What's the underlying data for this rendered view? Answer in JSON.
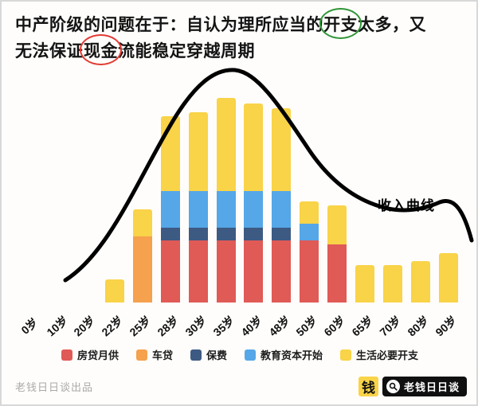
{
  "title": {
    "part1": "中产阶级的问题在于：自认为理所应当的",
    "circled_green": "开支",
    "part2": "太多，又",
    "part3": "无法保证",
    "circled_red": "现金",
    "part4": "流能稳定穿越周期"
  },
  "chart_data": {
    "type": "bar",
    "stacked": true,
    "grid": false,
    "legend_position": "bottom",
    "ylim": [
      0,
      100
    ],
    "categories": [
      "0岁",
      "10岁",
      "20岁",
      "22岁",
      "25岁",
      "28岁",
      "30岁",
      "35岁",
      "40岁",
      "48岁",
      "50岁",
      "60岁",
      "65岁",
      "70岁",
      "80岁",
      "90岁"
    ],
    "series": [
      {
        "name": "房贷月供",
        "color": "#e05a56",
        "values": [
          0,
          0,
          0,
          0,
          0,
          30,
          30,
          30,
          30,
          30,
          30,
          28,
          0,
          0,
          0,
          0
        ]
      },
      {
        "name": "车贷",
        "color": "#f5a14d",
        "values": [
          0,
          0,
          0,
          0,
          32,
          0,
          0,
          0,
          0,
          0,
          0,
          0,
          0,
          0,
          0,
          0
        ]
      },
      {
        "name": "保费",
        "color": "#3d5a83",
        "values": [
          0,
          0,
          0,
          0,
          0,
          6,
          6,
          6,
          6,
          6,
          0,
          0,
          0,
          0,
          0,
          0
        ]
      },
      {
        "name": "教育资本开始",
        "color": "#55a7e8",
        "values": [
          0,
          0,
          0,
          0,
          0,
          18,
          18,
          18,
          18,
          18,
          8,
          0,
          0,
          0,
          0,
          0
        ]
      },
      {
        "name": "生活必要开支",
        "color": "#f9d348",
        "values": [
          0,
          0,
          0,
          11,
          13,
          36,
          38,
          45,
          42,
          40,
          11,
          19,
          18,
          18,
          20,
          24
        ]
      }
    ],
    "curve_label": "收入曲线",
    "curve_color": "#000000"
  },
  "annotations": {
    "green_circle_color": "#2f9637",
    "red_circle_color": "#e23b34"
  },
  "footer": {
    "credit": "老钱日日谈出品",
    "logo_char": "钱",
    "logo_text": "老钱日日谈"
  }
}
